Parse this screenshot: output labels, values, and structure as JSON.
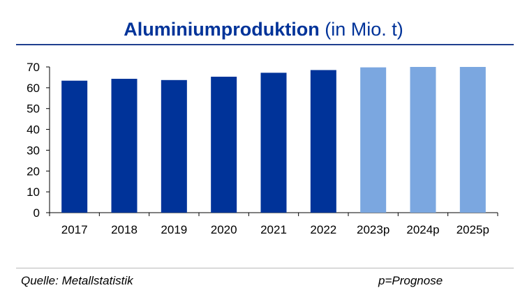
{
  "title_main": "Aluminiumproduktion",
  "title_unit": "(in Mio. t)",
  "source": "Quelle: Metallstatistik",
  "note": "p=Prognose",
  "colors": {
    "actual": "#003399",
    "forecast": "#7ba7e0",
    "title": "#003399"
  },
  "chart_data": {
    "type": "bar",
    "title": "Aluminiumproduktion (in Mio. t)",
    "categories": [
      "2017",
      "2018",
      "2019",
      "2020",
      "2021",
      "2022",
      "2023p",
      "2024p",
      "2025p"
    ],
    "values": [
      63.4,
      64.3,
      63.7,
      65.3,
      67.2,
      68.5,
      69.8,
      70.0,
      70.0
    ],
    "forecast": [
      false,
      false,
      false,
      false,
      false,
      false,
      true,
      true,
      true
    ],
    "ylim": [
      0,
      70
    ],
    "yticks": [
      0,
      10,
      20,
      30,
      40,
      50,
      60,
      70
    ],
    "xlabel": "",
    "ylabel": "",
    "grid": false,
    "legend": "none"
  }
}
